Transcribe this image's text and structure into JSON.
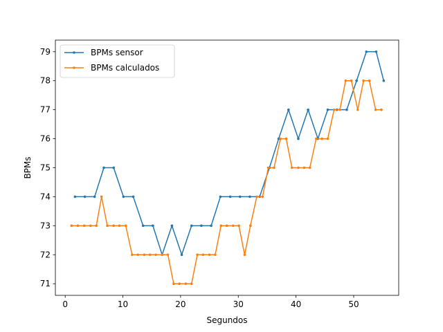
{
  "chart_data": {
    "type": "line",
    "title": "",
    "xlabel": "Segundos",
    "ylabel": "BPMs",
    "xlim": [
      -1.7,
      57.8
    ],
    "ylim": [
      70.6,
      79.4
    ],
    "xticks": [
      0,
      10,
      20,
      30,
      40,
      50
    ],
    "yticks": [
      71,
      72,
      73,
      74,
      75,
      76,
      77,
      78,
      79
    ],
    "grid": false,
    "legend_position": "top-left",
    "series": [
      {
        "name": "BPMs sensor",
        "color": "#1f77b4",
        "x": [
          1.7,
          3.4,
          5.1,
          6.7,
          8.4,
          10.1,
          11.8,
          13.5,
          15.2,
          16.8,
          18.5,
          20.2,
          21.9,
          23.6,
          25.3,
          26.9,
          28.6,
          30.3,
          32.0,
          33.7,
          35.4,
          37.0,
          38.7,
          40.4,
          42.1,
          43.8,
          45.5,
          47.1,
          48.8,
          50.5,
          52.2,
          53.9,
          55.2
        ],
        "y": [
          74,
          74,
          74,
          75,
          75,
          74,
          74,
          73,
          73,
          72,
          73,
          72,
          73,
          73,
          73,
          74,
          74,
          74,
          74,
          74,
          75,
          76,
          77,
          76,
          77,
          76,
          77,
          77,
          77,
          78,
          79,
          79,
          78
        ]
      },
      {
        "name": "BPMs calculados",
        "color": "#ff7f0e",
        "x": [
          1.1,
          2.2,
          3.3,
          4.4,
          5.4,
          6.3,
          7.3,
          8.4,
          9.4,
          10.5,
          11.6,
          12.6,
          13.7,
          14.7,
          15.7,
          16.8,
          17.8,
          18.8,
          19.8,
          20.9,
          21.9,
          22.9,
          23.9,
          25.0,
          26.0,
          27.0,
          28.0,
          29.1,
          30.1,
          31.1,
          32.1,
          33.2,
          34.2,
          35.2,
          36.2,
          37.3,
          38.3,
          39.3,
          40.4,
          41.4,
          42.4,
          43.5,
          44.5,
          45.5,
          46.6,
          47.6,
          48.6,
          49.6,
          50.7,
          51.7,
          52.7,
          53.8,
          54.8
        ],
        "y": [
          73,
          73,
          73,
          73,
          73,
          74,
          73,
          73,
          73,
          73,
          72,
          72,
          72,
          72,
          72,
          72,
          72,
          71,
          71,
          71,
          71,
          72,
          72,
          72,
          72,
          73,
          73,
          73,
          73,
          72,
          73,
          74,
          74,
          75,
          75,
          76,
          76,
          75,
          75,
          75,
          75,
          76,
          76,
          76,
          77,
          77,
          78,
          78,
          77,
          78,
          78,
          77,
          77
        ]
      }
    ]
  }
}
